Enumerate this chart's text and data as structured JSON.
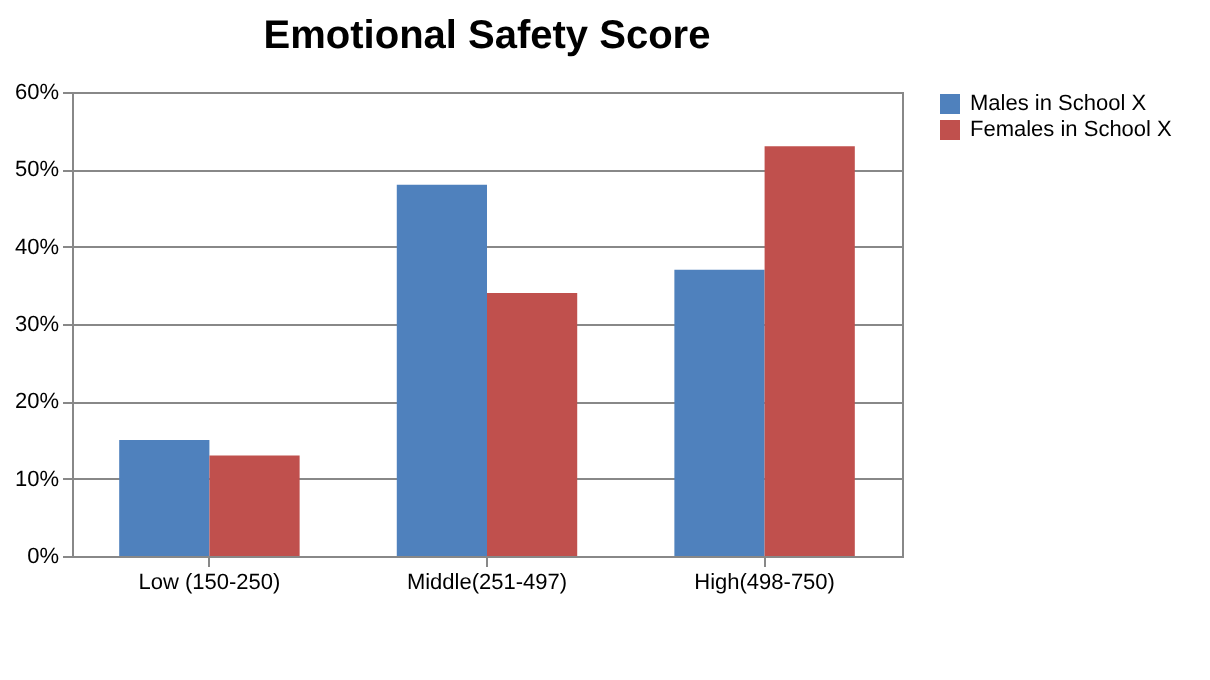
{
  "chart_data": {
    "type": "bar",
    "title": "Emotional Safety Score",
    "categories": [
      "Low (150-250)",
      "Middle(251-497)",
      "High(498-750)"
    ],
    "series": [
      {
        "name": "Males in School X",
        "color": "#4f81bd",
        "values": [
          15,
          48,
          37
        ]
      },
      {
        "name": "Females in School X",
        "color": "#c0504d",
        "values": [
          13,
          34,
          53
        ]
      }
    ],
    "ylim": [
      0,
      60
    ],
    "yticks": [
      {
        "value": 0,
        "label": "0%"
      },
      {
        "value": 10,
        "label": "10%"
      },
      {
        "value": 20,
        "label": "20%"
      },
      {
        "value": 30,
        "label": "30%"
      },
      {
        "value": 40,
        "label": "40%"
      },
      {
        "value": 50,
        "label": "50%"
      },
      {
        "value": 60,
        "label": "60%"
      }
    ],
    "grid": "y",
    "legend": "right"
  }
}
